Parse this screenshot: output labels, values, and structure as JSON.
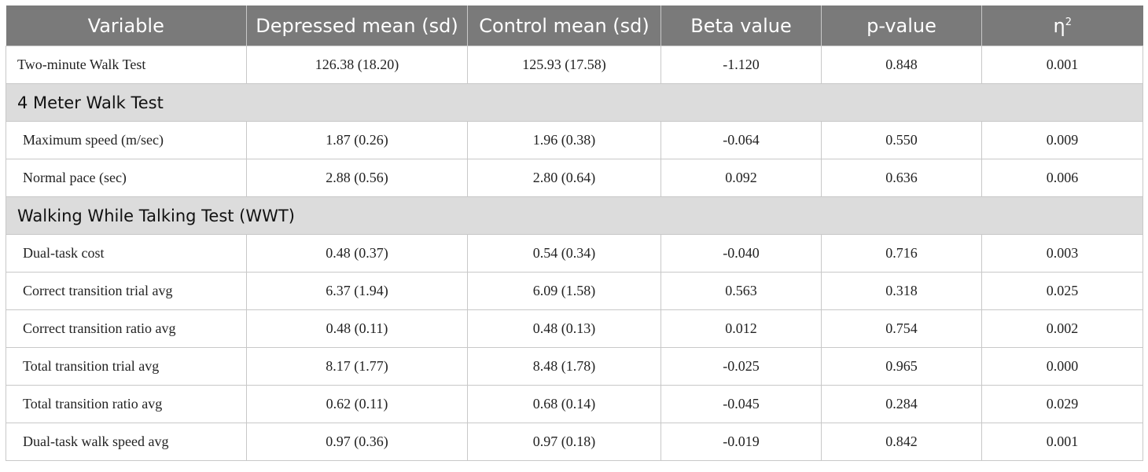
{
  "header": {
    "variable": "Variable",
    "depressed": "Depressed mean (sd)",
    "control": "Control mean (sd)",
    "beta": "Beta value",
    "pvalue": "p-value",
    "eta": "η",
    "eta_sup": "2"
  },
  "rows": [
    {
      "variable": "Two-minute Walk Test",
      "depressed": "126.38 (18.20)",
      "control": "125.93 (17.58)",
      "beta": "-1.120",
      "p": "0.848",
      "eta2": "0.001"
    }
  ],
  "sections": [
    {
      "title": "4 Meter Walk Test",
      "rows": [
        {
          "variable": "Maximum speed (m/sec)",
          "depressed": "1.87 (0.26)",
          "control": "1.96 (0.38)",
          "beta": "-0.064",
          "p": "0.550",
          "eta2": "0.009"
        },
        {
          "variable": "Normal pace (sec)",
          "depressed": "2.88 (0.56)",
          "control": "2.80 (0.64)",
          "beta": "0.092",
          "p": "0.636",
          "eta2": "0.006"
        }
      ]
    },
    {
      "title": "Walking While Talking Test (WWT)",
      "rows": [
        {
          "variable": "Dual-task cost",
          "depressed": "0.48 (0.37)",
          "control": "0.54 (0.34)",
          "beta": "-0.040",
          "p": "0.716",
          "eta2": "0.003"
        },
        {
          "variable": "Correct transition trial avg",
          "depressed": "6.37 (1.94)",
          "control": "6.09 (1.58)",
          "beta": "0.563",
          "p": "0.318",
          "eta2": "0.025"
        },
        {
          "variable": "Correct transition ratio avg",
          "depressed": "0.48 (0.11)",
          "control": "0.48 (0.13)",
          "beta": "0.012",
          "p": "0.754",
          "eta2": "0.002"
        },
        {
          "variable": "Total transition trial avg",
          "depressed": "8.17 (1.77)",
          "control": "8.48 (1.78)",
          "beta": "-0.025",
          "p": "0.965",
          "eta2": "0.000"
        },
        {
          "variable": "Total transition ratio avg",
          "depressed": "0.62 (0.11)",
          "control": "0.68 (0.14)",
          "beta": "-0.045",
          "p": "0.284",
          "eta2": "0.029"
        },
        {
          "variable": "Dual-task walk speed avg",
          "depressed": "0.97 (0.36)",
          "control": "0.97 (0.18)",
          "beta": "-0.019",
          "p": "0.842",
          "eta2": "0.001"
        }
      ]
    }
  ]
}
